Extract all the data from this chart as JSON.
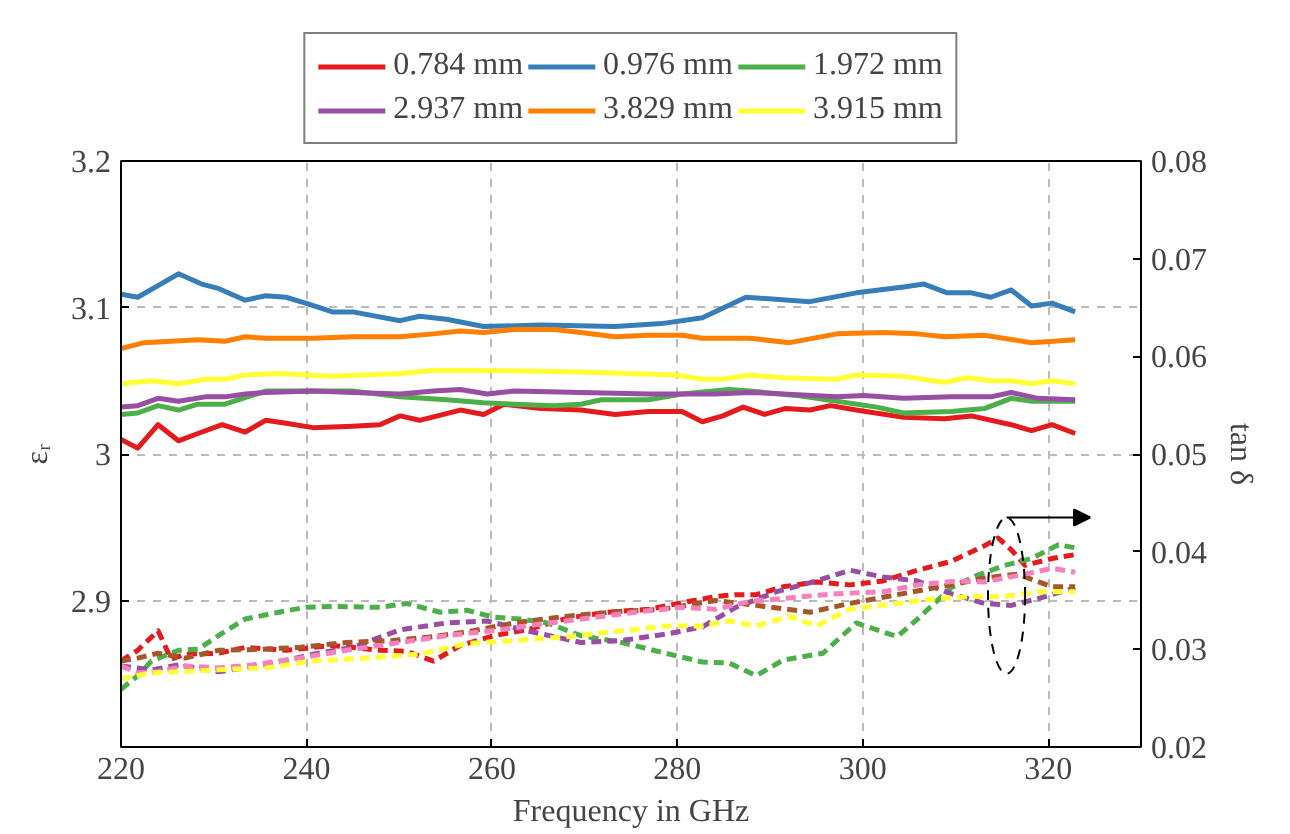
{
  "chart_data": {
    "type": "line",
    "xlabel": "Frequency in GHz",
    "ylabel": "εᵣ",
    "y2label": "tan δ",
    "xlim": [
      220,
      330
    ],
    "xticks": [
      220,
      240,
      260,
      280,
      300,
      320
    ],
    "ylim": [
      2.8,
      3.2
    ],
    "yticks": [
      2.9,
      3,
      3.1,
      3.2
    ],
    "y2lim": [
      0.02,
      0.08
    ],
    "y2ticks": [
      0.02,
      0.03,
      0.04,
      0.05,
      0.06,
      0.07,
      0.08
    ],
    "grid": true,
    "legend": "top",
    "marker": "none",
    "series": [
      {
        "name": "0.784 mm",
        "color": "#e41a1c",
        "line_style": "solid",
        "x": [
          220.0,
          221.8,
          224.0,
          226.2,
          228.3,
          230.9,
          233.4,
          235.6,
          237.8,
          240.7,
          245.0,
          247.9,
          250.1,
          252.2,
          256.6,
          259.1,
          261.3,
          265.3,
          269.6,
          273.3,
          276.9,
          280.5,
          282.7,
          284.9,
          287.1,
          289.4,
          291.6,
          294.3,
          296.5,
          299.3,
          304.4,
          308.8,
          311.7,
          316.0,
          318.2,
          320.4,
          322.9
        ],
        "values": [
          3.01,
          3.004,
          3.02,
          3.009,
          3.014,
          3.02,
          3.015,
          3.023,
          3.021,
          3.018,
          3.019,
          3.02,
          3.026,
          3.023,
          3.03,
          3.027,
          3.034,
          3.031,
          3.03,
          3.027,
          3.029,
          3.029,
          3.022,
          3.026,
          3.032,
          3.027,
          3.031,
          3.03,
          3.033,
          3.03,
          3.025,
          3.024,
          3.026,
          3.02,
          3.016,
          3.02,
          3.014
        ]
      },
      {
        "name": "0.976 mm",
        "color": "#377eb8",
        "line_style": "solid",
        "x": [
          220.0,
          221.8,
          226.2,
          228.7,
          230.5,
          233.4,
          235.6,
          237.8,
          239.9,
          242.8,
          245.0,
          250.1,
          252.2,
          255.1,
          259.1,
          265.3,
          273.3,
          278.3,
          282.7,
          287.4,
          294.3,
          299.3,
          304.4,
          306.6,
          309.1,
          311.7,
          313.8,
          316.0,
          318.2,
          320.4,
          322.9
        ],
        "values": [
          3.109,
          3.107,
          3.123,
          3.116,
          3.113,
          3.105,
          3.108,
          3.107,
          3.103,
          3.097,
          3.097,
          3.091,
          3.094,
          3.092,
          3.087,
          3.088,
          3.087,
          3.089,
          3.093,
          3.107,
          3.104,
          3.11,
          3.114,
          3.116,
          3.11,
          3.11,
          3.107,
          3.112,
          3.101,
          3.103,
          3.097
        ]
      },
      {
        "name": "1.972 mm",
        "color": "#4daf4a",
        "line_style": "solid",
        "x": [
          220.0,
          221.8,
          224.0,
          226.2,
          228.3,
          231.2,
          235.6,
          240.7,
          245.0,
          250.1,
          255.1,
          259.1,
          262.4,
          266.7,
          269.6,
          271.8,
          276.9,
          280.5,
          285.6,
          287.8,
          292.8,
          297.2,
          301.5,
          304.4,
          309.5,
          313.1,
          316.0,
          318.2,
          322.9
        ],
        "values": [
          3.027,
          3.028,
          3.033,
          3.03,
          3.034,
          3.034,
          3.043,
          3.043,
          3.043,
          3.039,
          3.037,
          3.035,
          3.034,
          3.033,
          3.034,
          3.037,
          3.037,
          3.041,
          3.044,
          3.043,
          3.04,
          3.036,
          3.032,
          3.028,
          3.029,
          3.031,
          3.038,
          3.036,
          3.036
        ]
      },
      {
        "name": "2.937 mm",
        "color": "#984ea3",
        "line_style": "solid",
        "x": [
          220.0,
          221.8,
          224.0,
          226.2,
          229.1,
          231.2,
          233.4,
          235.6,
          240.7,
          245.0,
          250.1,
          253.7,
          256.6,
          259.5,
          262.4,
          269.6,
          276.9,
          280.5,
          284.1,
          287.8,
          291.4,
          297.2,
          300.1,
          304.4,
          309.5,
          313.8,
          316.0,
          318.9,
          322.9
        ],
        "values": [
          3.032,
          3.033,
          3.038,
          3.036,
          3.039,
          3.039,
          3.041,
          3.042,
          3.043,
          3.042,
          3.041,
          3.043,
          3.044,
          3.041,
          3.043,
          3.042,
          3.041,
          3.041,
          3.041,
          3.042,
          3.041,
          3.039,
          3.04,
          3.038,
          3.039,
          3.039,
          3.042,
          3.038,
          3.037
        ]
      },
      {
        "name": "3.829 mm",
        "color": "#ff7f00",
        "line_style": "solid",
        "x": [
          220.0,
          222.5,
          228.3,
          231.2,
          233.4,
          235.6,
          240.7,
          245.0,
          250.1,
          253.7,
          256.6,
          259.1,
          262.4,
          266.7,
          269.6,
          273.3,
          276.9,
          280.5,
          282.7,
          287.8,
          292.1,
          297.2,
          302.2,
          305.9,
          308.8,
          313.1,
          318.2,
          322.9
        ],
        "values": [
          3.072,
          3.076,
          3.078,
          3.077,
          3.08,
          3.079,
          3.079,
          3.08,
          3.08,
          3.082,
          3.084,
          3.083,
          3.085,
          3.085,
          3.083,
          3.08,
          3.081,
          3.081,
          3.079,
          3.079,
          3.076,
          3.082,
          3.083,
          3.082,
          3.08,
          3.081,
          3.076,
          3.078
        ]
      },
      {
        "name": "3.915 mm",
        "color": "#ffff33",
        "line_style": "solid",
        "x": [
          220.0,
          223.3,
          226.2,
          229.1,
          231.2,
          233.4,
          237.0,
          242.8,
          250.1,
          253.7,
          259.1,
          269.6,
          279.8,
          282.7,
          284.9,
          287.8,
          291.4,
          297.2,
          299.3,
          304.4,
          308.8,
          311.3,
          313.8,
          316.0,
          318.2,
          320.4,
          322.9
        ],
        "values": [
          3.048,
          3.05,
          3.048,
          3.051,
          3.051,
          3.054,
          3.055,
          3.053,
          3.055,
          3.057,
          3.057,
          3.056,
          3.054,
          3.051,
          3.051,
          3.054,
          3.052,
          3.051,
          3.054,
          3.053,
          3.049,
          3.052,
          3.05,
          3.05,
          3.048,
          3.05,
          3.048
        ]
      },
      {
        "color": "#e41a1c",
        "line_style": "dashed",
        "axis": "y2",
        "x": [
          220.0,
          221.8,
          224.0,
          225.4,
          226.9,
          230.5,
          233.4,
          237.8,
          242.8,
          247.9,
          250.8,
          253.7,
          256.6,
          260.2,
          263.8,
          268.2,
          272.5,
          276.9,
          281.2,
          284.1,
          286.3,
          288.5,
          291.4,
          295.0,
          298.6,
          302.2,
          305.9,
          309.5,
          313.1,
          314.6,
          316.0,
          317.5,
          320.4,
          322.9
        ],
        "values": [
          0.0288,
          0.0299,
          0.0319,
          0.029,
          0.0295,
          0.0296,
          0.0302,
          0.0299,
          0.0304,
          0.0299,
          0.0298,
          0.0288,
          0.0304,
          0.0314,
          0.032,
          0.0332,
          0.0338,
          0.0341,
          0.0349,
          0.0354,
          0.0356,
          0.0356,
          0.0364,
          0.0369,
          0.0366,
          0.037,
          0.0381,
          0.039,
          0.0406,
          0.0414,
          0.0402,
          0.0386,
          0.0393,
          0.0397
        ]
      },
      {
        "color": "#4daf4a",
        "line_style": "dashed",
        "axis": "y2",
        "x": [
          220.0,
          221.8,
          223.3,
          226.2,
          228.3,
          230.5,
          233.4,
          237.0,
          239.9,
          242.8,
          247.9,
          250.8,
          254.4,
          257.3,
          260.2,
          263.1,
          266.0,
          269.6,
          274.0,
          278.3,
          282.7,
          285.6,
          288.5,
          291.4,
          295.7,
          299.3,
          303.7,
          305.9,
          309.5,
          312.4,
          315.3,
          318.2,
          321.1,
          322.9
        ],
        "values": [
          0.0259,
          0.0273,
          0.0288,
          0.0299,
          0.03,
          0.0314,
          0.0331,
          0.0338,
          0.0343,
          0.0344,
          0.0343,
          0.0347,
          0.0338,
          0.034,
          0.0333,
          0.0331,
          0.0327,
          0.0314,
          0.0307,
          0.0297,
          0.0287,
          0.0286,
          0.0273,
          0.0289,
          0.0296,
          0.0327,
          0.0313,
          0.0331,
          0.0363,
          0.0376,
          0.0386,
          0.0393,
          0.0407,
          0.0404
        ]
      },
      {
        "color": "#984ea3",
        "line_style": "dashed",
        "axis": "y2",
        "x": [
          220.0,
          223.3,
          226.2,
          230.5,
          235.6,
          240.7,
          245.0,
          250.1,
          255.1,
          259.5,
          263.8,
          269.6,
          274.0,
          279.0,
          282.7,
          286.3,
          290.7,
          295.0,
          298.6,
          302.2,
          305.9,
          309.5,
          313.1,
          316.0,
          318.9,
          322.9
        ],
        "values": [
          0.0283,
          0.0279,
          0.0284,
          0.0277,
          0.0284,
          0.0295,
          0.0302,
          0.032,
          0.0327,
          0.0329,
          0.0319,
          0.0307,
          0.0309,
          0.0316,
          0.0323,
          0.0343,
          0.0359,
          0.037,
          0.0381,
          0.0374,
          0.037,
          0.0357,
          0.0347,
          0.0345,
          0.0352,
          0.0363
        ]
      },
      {
        "color": "#a65628",
        "line_style": "dashed",
        "axis": "y2",
        "x": [
          220.0,
          221.8,
          224.0,
          226.9,
          230.5,
          234.9,
          239.2,
          244.3,
          249.3,
          253.7,
          258.0,
          262.4,
          268.2,
          274.0,
          278.3,
          284.1,
          288.5,
          294.3,
          298.6,
          303.7,
          309.5,
          313.1,
          316.7,
          320.4,
          322.9
        ],
        "values": [
          0.0288,
          0.0291,
          0.0296,
          0.0291,
          0.0299,
          0.03,
          0.0302,
          0.0307,
          0.0309,
          0.0313,
          0.0319,
          0.0327,
          0.0334,
          0.0339,
          0.0341,
          0.035,
          0.0345,
          0.0338,
          0.0347,
          0.0356,
          0.0366,
          0.0373,
          0.0377,
          0.0364,
          0.0364
        ]
      },
      {
        "color": "#f781bf",
        "line_style": "dashed",
        "axis": "y2",
        "x": [
          220.0,
          221.8,
          224.0,
          226.9,
          230.5,
          234.1,
          239.2,
          244.3,
          250.1,
          255.1,
          260.9,
          265.3,
          269.6,
          275.4,
          280.5,
          284.1,
          287.8,
          293.6,
          297.2,
          302.2,
          305.9,
          310.2,
          313.1,
          317.5,
          320.4,
          322.9
        ],
        "values": [
          0.0283,
          0.0276,
          0.0277,
          0.0283,
          0.0281,
          0.0284,
          0.0291,
          0.0299,
          0.0307,
          0.0314,
          0.032,
          0.0326,
          0.0331,
          0.0338,
          0.0343,
          0.0341,
          0.0349,
          0.0354,
          0.0357,
          0.0359,
          0.0366,
          0.037,
          0.0369,
          0.0377,
          0.0383,
          0.0379
        ]
      },
      {
        "color": "#ffff33",
        "line_style": "dashed",
        "axis": "y2",
        "x": [
          220.0,
          223.3,
          226.2,
          230.5,
          235.6,
          240.7,
          246.4,
          252.2,
          257.3,
          262.4,
          268.2,
          274.0,
          279.0,
          282.7,
          285.6,
          288.5,
          292.1,
          295.0,
          298.6,
          303.7,
          308.0,
          311.7,
          315.3,
          318.9,
          322.9
        ],
        "values": [
          0.027,
          0.0276,
          0.0277,
          0.0279,
          0.0281,
          0.0288,
          0.0291,
          0.0295,
          0.0306,
          0.0309,
          0.0313,
          0.0319,
          0.0324,
          0.0324,
          0.0329,
          0.0324,
          0.0334,
          0.0324,
          0.0341,
          0.0347,
          0.0352,
          0.0354,
          0.0354,
          0.0359,
          0.0359
        ]
      }
    ]
  }
}
